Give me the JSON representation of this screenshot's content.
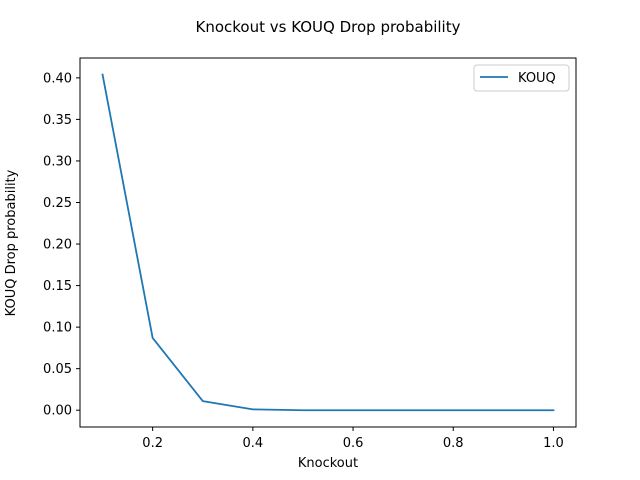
{
  "chart_data": {
    "type": "line",
    "title": "Knockout vs KOUQ Drop probability",
    "xlabel": "Knockout",
    "ylabel": "KOUQ Drop probability",
    "xlim": [
      0.055,
      1.045
    ],
    "ylim": [
      -0.0202,
      0.4239
    ],
    "x_ticks": [
      0.2,
      0.4,
      0.6,
      0.8,
      1.0
    ],
    "x_tick_labels": [
      "0.2",
      "0.4",
      "0.6",
      "0.8",
      "1.0"
    ],
    "y_ticks": [
      0.0,
      0.05,
      0.1,
      0.15,
      0.2,
      0.25,
      0.3,
      0.35,
      0.4
    ],
    "y_tick_labels": [
      "0.00",
      "0.05",
      "0.10",
      "0.15",
      "0.20",
      "0.25",
      "0.30",
      "0.35",
      "0.40"
    ],
    "grid": false,
    "legend": "top-right",
    "series": [
      {
        "name": "KOUQ",
        "color": "#1f77b4",
        "x": [
          0.1,
          0.2,
          0.3,
          0.4,
          0.5,
          0.6,
          0.7,
          0.8,
          0.9,
          1.0
        ],
        "y": [
          0.404,
          0.087,
          0.011,
          0.001,
          0.0,
          0.0,
          0.0,
          0.0,
          0.0,
          0.0
        ]
      }
    ]
  }
}
